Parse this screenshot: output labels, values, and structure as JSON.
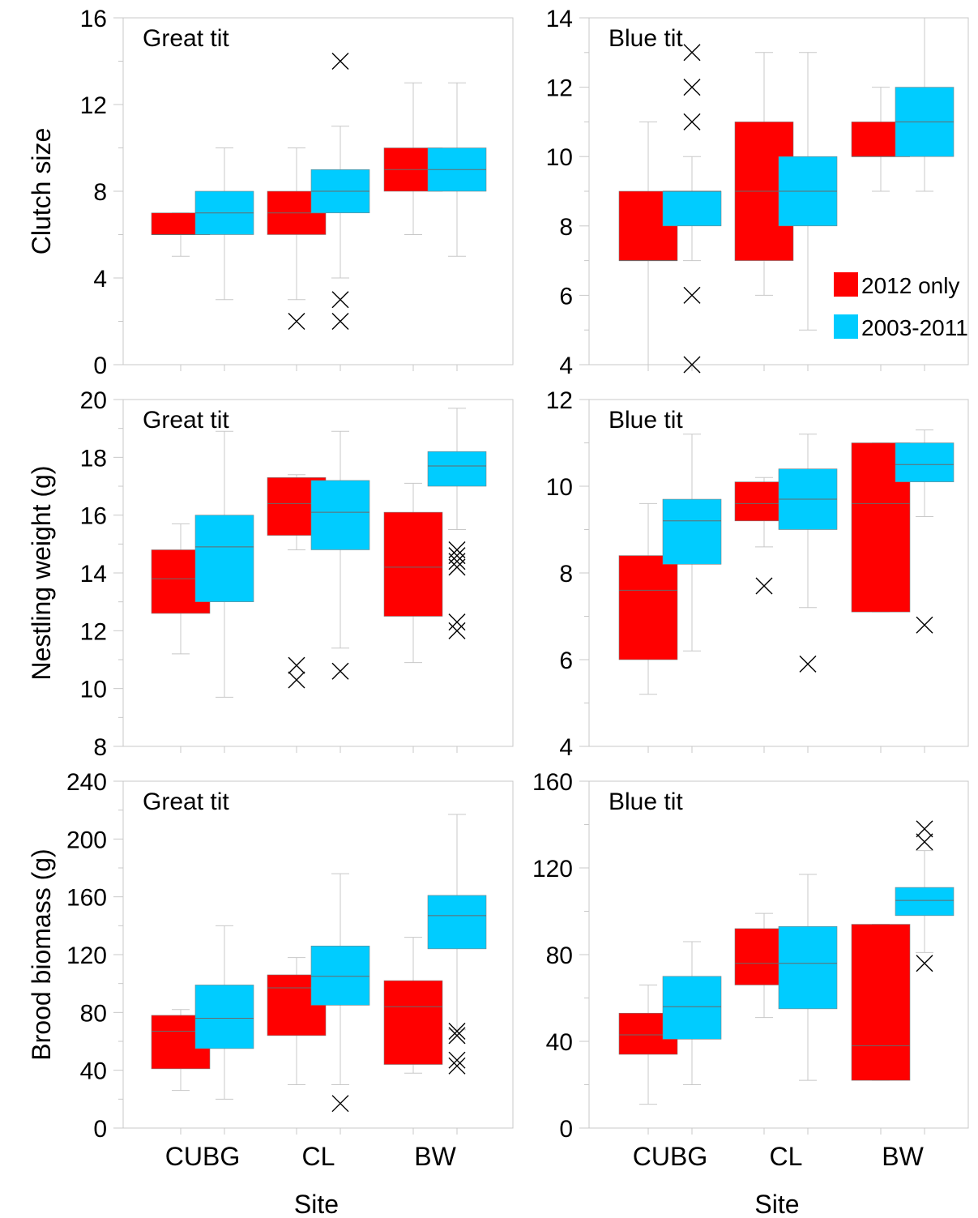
{
  "legend": [
    {
      "label": "2012 only",
      "color": "#ff0000"
    },
    {
      "label": "2003-2011",
      "color": "#00ccff"
    }
  ],
  "x_axis_label": "Site",
  "chart_data": [
    {
      "type": "box",
      "title": "Great tit",
      "ylabel": "Clutch size",
      "ylim": [
        0,
        16
      ],
      "yticks": [
        0,
        4,
        8,
        12,
        16
      ],
      "categories": [
        "CUBG",
        "CL",
        "BW"
      ],
      "series": [
        {
          "name": "2012 only",
          "color": "#ff0000",
          "boxes": [
            {
              "category": "CUBG",
              "q1": 6,
              "median": 6,
              "q3": 7,
              "whisker_low": 5,
              "whisker_high": 7,
              "outliers": []
            },
            {
              "category": "CL",
              "q1": 6,
              "median": 7,
              "q3": 8,
              "whisker_low": 3,
              "whisker_high": 10,
              "outliers": [
                2
              ]
            },
            {
              "category": "BW",
              "q1": 8,
              "median": 9,
              "q3": 10,
              "whisker_low": 6,
              "whisker_high": 13,
              "outliers": []
            }
          ]
        },
        {
          "name": "2003-2011",
          "color": "#00ccff",
          "boxes": [
            {
              "category": "CUBG",
              "q1": 6,
              "median": 7,
              "q3": 8,
              "whisker_low": 3,
              "whisker_high": 10,
              "outliers": []
            },
            {
              "category": "CL",
              "q1": 7,
              "median": 8,
              "q3": 9,
              "whisker_low": 4,
              "whisker_high": 11,
              "outliers": [
                14,
                3,
                2
              ]
            },
            {
              "category": "BW",
              "q1": 8,
              "median": 9,
              "q3": 10,
              "whisker_low": 5,
              "whisker_high": 13,
              "outliers": []
            }
          ]
        }
      ]
    },
    {
      "type": "box",
      "title": "Blue tit",
      "ylabel": "",
      "ylim": [
        4,
        14
      ],
      "yticks": [
        4,
        6,
        8,
        10,
        12,
        14
      ],
      "categories": [
        "CUBG",
        "CL",
        "BW"
      ],
      "series": [
        {
          "name": "2012 only",
          "color": "#ff0000",
          "boxes": [
            {
              "category": "CUBG",
              "q1": 7,
              "median": 7,
              "q3": 9,
              "whisker_low": 4,
              "whisker_high": 11,
              "outliers": []
            },
            {
              "category": "CL",
              "q1": 7,
              "median": 9,
              "q3": 11,
              "whisker_low": 6,
              "whisker_high": 13,
              "outliers": []
            },
            {
              "category": "BW",
              "q1": 10,
              "median": 10,
              "q3": 11,
              "whisker_low": 9,
              "whisker_high": 12,
              "outliers": []
            }
          ]
        },
        {
          "name": "2003-2011",
          "color": "#00ccff",
          "boxes": [
            {
              "category": "CUBG",
              "q1": 8,
              "median": 9,
              "q3": 9,
              "whisker_low": 7,
              "whisker_high": 10,
              "outliers": [
                13,
                12,
                11,
                6,
                4
              ]
            },
            {
              "category": "CL",
              "q1": 8,
              "median": 9,
              "q3": 10,
              "whisker_low": 5,
              "whisker_high": 13,
              "outliers": []
            },
            {
              "category": "BW",
              "q1": 10,
              "median": 11,
              "q3": 12,
              "whisker_low": 9,
              "whisker_high": 14,
              "outliers": []
            }
          ]
        }
      ]
    },
    {
      "type": "box",
      "title": "Great tit",
      "ylabel": "Nestling weight (g)",
      "ylim": [
        8,
        20
      ],
      "yticks": [
        8,
        10,
        12,
        14,
        16,
        18,
        20
      ],
      "categories": [
        "CUBG",
        "CL",
        "BW"
      ],
      "series": [
        {
          "name": "2012 only",
          "color": "#ff0000",
          "boxes": [
            {
              "category": "CUBG",
              "q1": 12.6,
              "median": 13.8,
              "q3": 14.8,
              "whisker_low": 11.2,
              "whisker_high": 15.7,
              "outliers": []
            },
            {
              "category": "CL",
              "q1": 15.3,
              "median": 16.4,
              "q3": 17.3,
              "whisker_low": 14.8,
              "whisker_high": 17.4,
              "outliers": [
                10.8,
                10.3
              ]
            },
            {
              "category": "BW",
              "q1": 12.5,
              "median": 14.2,
              "q3": 16.1,
              "whisker_low": 10.9,
              "whisker_high": 17.1,
              "outliers": []
            }
          ]
        },
        {
          "name": "2003-2011",
          "color": "#00ccff",
          "boxes": [
            {
              "category": "CUBG",
              "q1": 13.0,
              "median": 14.9,
              "q3": 16.0,
              "whisker_low": 9.7,
              "whisker_high": 18.9,
              "outliers": []
            },
            {
              "category": "CL",
              "q1": 14.8,
              "median": 16.1,
              "q3": 17.2,
              "whisker_low": 11.4,
              "whisker_high": 18.9,
              "outliers": [
                10.6
              ]
            },
            {
              "category": "BW",
              "q1": 17.0,
              "median": 17.7,
              "q3": 18.2,
              "whisker_low": 15.5,
              "whisker_high": 19.7,
              "outliers": [
                14.8,
                14.6,
                14.4,
                14.2,
                12.3,
                12.0
              ]
            }
          ]
        }
      ]
    },
    {
      "type": "box",
      "title": "Blue tit",
      "ylabel": "",
      "ylim": [
        4,
        12
      ],
      "yticks": [
        4,
        6,
        8,
        10,
        12
      ],
      "categories": [
        "CUBG",
        "CL",
        "BW"
      ],
      "series": [
        {
          "name": "2012 only",
          "color": "#ff0000",
          "boxes": [
            {
              "category": "CUBG",
              "q1": 6.0,
              "median": 7.6,
              "q3": 8.4,
              "whisker_low": 5.2,
              "whisker_high": 9.6,
              "outliers": []
            },
            {
              "category": "CL",
              "q1": 9.2,
              "median": 9.6,
              "q3": 10.1,
              "whisker_low": 8.6,
              "whisker_high": 10.2,
              "outliers": [
                7.7
              ]
            },
            {
              "category": "BW",
              "q1": 7.1,
              "median": 9.6,
              "q3": 11.0,
              "whisker_low": 7.1,
              "whisker_high": 11.0,
              "outliers": []
            }
          ]
        },
        {
          "name": "2003-2011",
          "color": "#00ccff",
          "boxes": [
            {
              "category": "CUBG",
              "q1": 8.2,
              "median": 9.2,
              "q3": 9.7,
              "whisker_low": 6.2,
              "whisker_high": 11.2,
              "outliers": []
            },
            {
              "category": "CL",
              "q1": 9.0,
              "median": 9.7,
              "q3": 10.4,
              "whisker_low": 7.2,
              "whisker_high": 11.2,
              "outliers": [
                5.9
              ]
            },
            {
              "category": "BW",
              "q1": 10.1,
              "median": 10.5,
              "q3": 11.0,
              "whisker_low": 9.3,
              "whisker_high": 11.3,
              "outliers": [
                6.8
              ]
            }
          ]
        }
      ]
    },
    {
      "type": "box",
      "title": "Great tit",
      "ylabel": "Brood biomass (g)",
      "ylim": [
        0,
        240
      ],
      "yticks": [
        0,
        40,
        80,
        120,
        160,
        200,
        240
      ],
      "categories": [
        "CUBG",
        "CL",
        "BW"
      ],
      "xlabel": "Site",
      "series": [
        {
          "name": "2012 only",
          "color": "#ff0000",
          "boxes": [
            {
              "category": "CUBG",
              "q1": 41,
              "median": 67,
              "q3": 78,
              "whisker_low": 26,
              "whisker_high": 82,
              "outliers": []
            },
            {
              "category": "CL",
              "q1": 64,
              "median": 97,
              "q3": 106,
              "whisker_low": 30,
              "whisker_high": 118,
              "outliers": []
            },
            {
              "category": "BW",
              "q1": 44,
              "median": 84,
              "q3": 102,
              "whisker_low": 38,
              "whisker_high": 132,
              "outliers": []
            }
          ]
        },
        {
          "name": "2003-2011",
          "color": "#00ccff",
          "boxes": [
            {
              "category": "CUBG",
              "q1": 55,
              "median": 76,
              "q3": 99,
              "whisker_low": 20,
              "whisker_high": 140,
              "outliers": []
            },
            {
              "category": "CL",
              "q1": 85,
              "median": 105,
              "q3": 126,
              "whisker_low": 30,
              "whisker_high": 176,
              "outliers": [
                17
              ]
            },
            {
              "category": "BW",
              "q1": 124,
              "median": 147,
              "q3": 161,
              "whisker_low": 68,
              "whisker_high": 217,
              "outliers": [
                67,
                64,
                47,
                43
              ]
            }
          ]
        }
      ]
    },
    {
      "type": "box",
      "title": "Blue tit",
      "ylabel": "",
      "ylim": [
        0,
        160
      ],
      "yticks": [
        0,
        40,
        80,
        120,
        160
      ],
      "categories": [
        "CUBG",
        "CL",
        "BW"
      ],
      "xlabel": "Site",
      "series": [
        {
          "name": "2012 only",
          "color": "#ff0000",
          "boxes": [
            {
              "category": "CUBG",
              "q1": 34,
              "median": 43,
              "q3": 53,
              "whisker_low": 11,
              "whisker_high": 66,
              "outliers": []
            },
            {
              "category": "CL",
              "q1": 66,
              "median": 76,
              "q3": 92,
              "whisker_low": 51,
              "whisker_high": 99,
              "outliers": []
            },
            {
              "category": "BW",
              "q1": 22,
              "median": 38,
              "q3": 94,
              "whisker_low": 22,
              "whisker_high": 94,
              "outliers": []
            }
          ]
        },
        {
          "name": "2003-2011",
          "color": "#00ccff",
          "boxes": [
            {
              "category": "CUBG",
              "q1": 41,
              "median": 56,
              "q3": 70,
              "whisker_low": 20,
              "whisker_high": 86,
              "outliers": []
            },
            {
              "category": "CL",
              "q1": 55,
              "median": 76,
              "q3": 93,
              "whisker_low": 22,
              "whisker_high": 117,
              "outliers": []
            },
            {
              "category": "BW",
              "q1": 98,
              "median": 105,
              "q3": 111,
              "whisker_low": 81,
              "whisker_high": 128,
              "outliers": [
                138,
                132,
                76
              ]
            }
          ]
        }
      ]
    }
  ]
}
